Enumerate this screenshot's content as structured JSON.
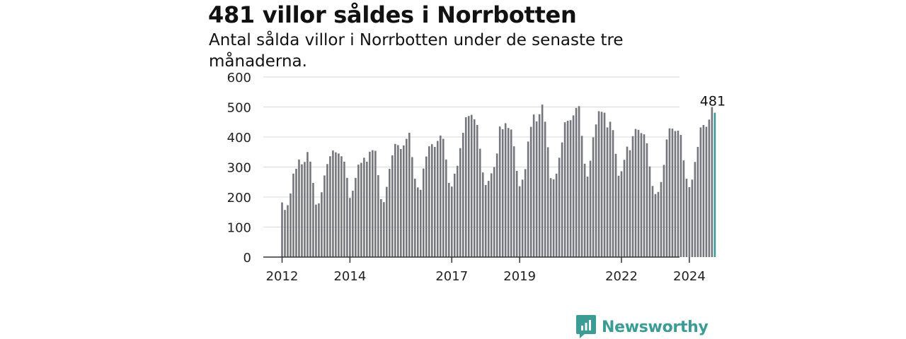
{
  "header": {
    "title": "481 villor såldes i Norrbotten",
    "subtitle": "Antal sålda villor i Norrbotten under de senaste tre månaderna."
  },
  "brand": {
    "name": "Newsworthy",
    "icon": "newsworthy-logo-icon",
    "color": "#3a9c94"
  },
  "chart_data": {
    "type": "bar",
    "x_tick_labels": [
      "2012",
      "2014",
      "2017",
      "2019",
      "2022",
      "2024"
    ],
    "y_ticks": [
      0,
      100,
      200,
      300,
      400,
      500,
      600
    ],
    "ylim": [
      0,
      600
    ],
    "grid": true,
    "bar_color": "#75757d",
    "highlight_color": "#3a9c94",
    "highlight_label": "481",
    "series": [
      {
        "values": [
          182,
          157,
          173,
          212,
          278,
          294,
          325,
          309,
          317,
          350,
          318,
          247,
          175,
          179,
          216,
          272,
          310,
          336,
          355,
          349,
          345,
          336,
          318,
          264,
          197,
          221,
          264,
          308,
          314,
          331,
          318,
          351,
          356,
          354,
          273,
          193,
          183,
          234,
          294,
          339,
          377,
          373,
          360,
          372,
          394,
          414,
          333,
          261,
          232,
          224,
          295,
          335,
          369,
          376,
          367,
          387,
          405,
          394,
          325,
          247,
          235,
          278,
          304,
          363,
          414,
          466,
          470,
          474,
          459,
          440,
          361,
          282,
          240,
          254,
          279,
          300,
          345,
          435,
          426,
          446,
          430,
          425,
          369,
          287,
          236,
          258,
          293,
          385,
          434,
          475,
          452,
          476,
          508,
          451,
          366,
          263,
          259,
          278,
          331,
          382,
          449,
          454,
          456,
          472,
          497,
          503,
          404,
          311,
          268,
          321,
          399,
          442,
          486,
          484,
          481,
          432,
          451,
          423,
          344,
          271,
          286,
          324,
          368,
          356,
          403,
          427,
          424,
          413,
          409,
          379,
          302,
          237,
          210,
          217,
          250,
          307,
          392,
          429,
          428,
          420,
          421,
          407,
          322,
          261,
          233,
          258,
          317,
          367,
          432,
          440,
          434,
          458,
          500,
          481
        ]
      }
    ]
  }
}
